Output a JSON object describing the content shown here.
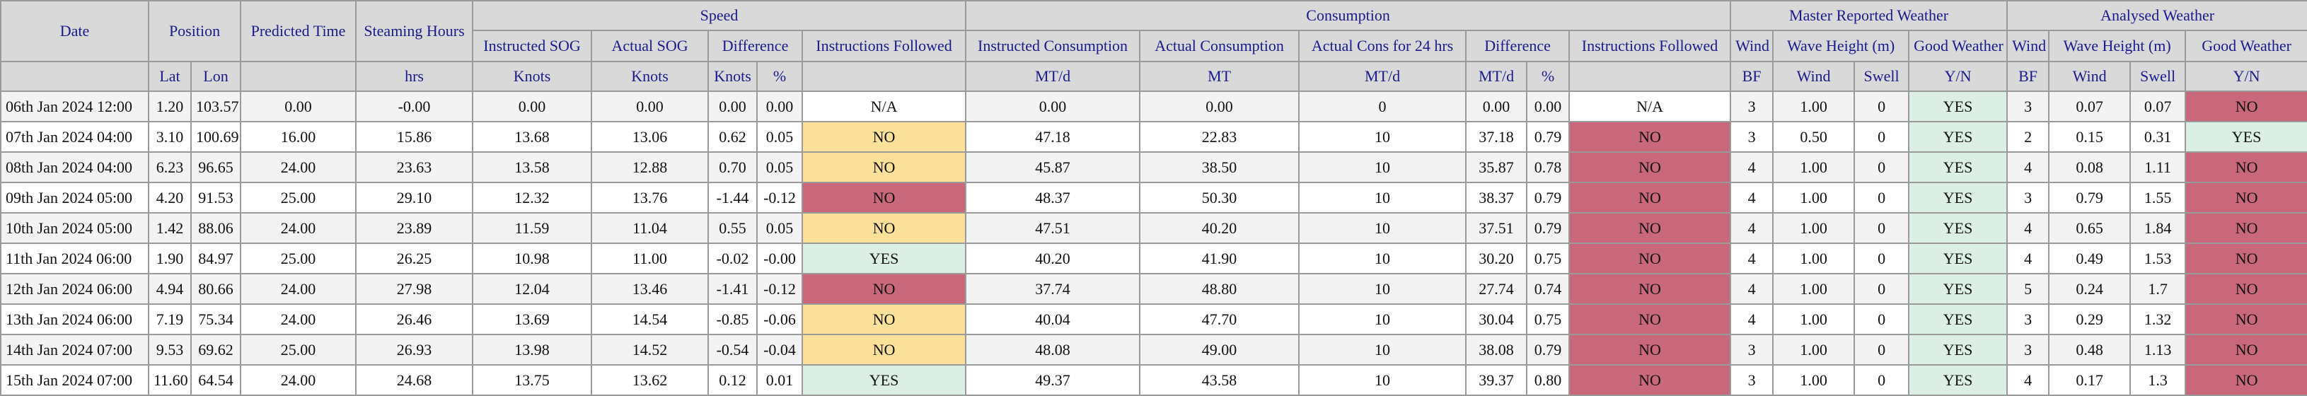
{
  "colors": {
    "header_bg": "#d9d9d9",
    "header_text": "#1a1a8c",
    "no_orange": "#fbe09a",
    "no_red": "#c9677b",
    "yes_green": "#dcefe4"
  },
  "headers": {
    "groups": [
      "Date",
      "Position",
      "Predicted Time",
      "Steaming Hours",
      "Speed",
      "Consumption",
      "Master Reported Weather",
      "Analysed Weather"
    ],
    "sub": [
      "Instructed SOG",
      "Actual SOG",
      "Difference",
      "Instructions Followed",
      "Instructed Consumption",
      "Actual Consumption",
      "Actual Cons for 24 hrs",
      "Difference",
      "Instructions Followed",
      "Wind",
      "Wave Height (m)",
      "Good Weather",
      "Wind",
      "Wave Height (m)",
      "Good Weather"
    ],
    "units": [
      "Lat",
      "Lon",
      "hrs",
      "Knots",
      "Knots",
      "Knots",
      "%",
      "MT/d",
      "MT",
      "MT/d",
      "MT/d",
      "%",
      "BF",
      "Wind",
      "Swell",
      "Y/N",
      "BF",
      "Wind",
      "Swell",
      "Y/N"
    ]
  },
  "rows": [
    [
      "06th Jan 2024 12:00",
      "1.20",
      "103.57",
      "0.00",
      "-0.00",
      "0.00",
      "0.00",
      "0.00",
      "0.00",
      "N/A",
      "0.00",
      "0.00",
      "0",
      "0.00",
      "0.00",
      "N/A",
      "3",
      "1.00",
      "0",
      "YES",
      "3",
      "0.07",
      "0.07",
      "NO"
    ],
    [
      "07th Jan 2024 04:00",
      "3.10",
      "100.69",
      "16.00",
      "15.86",
      "13.68",
      "13.06",
      "0.62",
      "0.05",
      "NO",
      "47.18",
      "22.83",
      "10",
      "37.18",
      "0.79",
      "NO",
      "3",
      "0.50",
      "0",
      "YES",
      "2",
      "0.15",
      "0.31",
      "YES"
    ],
    [
      "08th Jan 2024 04:00",
      "6.23",
      "96.65",
      "24.00",
      "23.63",
      "13.58",
      "12.88",
      "0.70",
      "0.05",
      "NO",
      "45.87",
      "38.50",
      "10",
      "35.87",
      "0.78",
      "NO",
      "4",
      "1.00",
      "0",
      "YES",
      "4",
      "0.08",
      "1.11",
      "NO"
    ],
    [
      "09th Jan 2024 05:00",
      "4.20",
      "91.53",
      "25.00",
      "29.10",
      "12.32",
      "13.76",
      "-1.44",
      "-0.12",
      "NO",
      "48.37",
      "50.30",
      "10",
      "38.37",
      "0.79",
      "NO",
      "4",
      "1.00",
      "0",
      "YES",
      "3",
      "0.79",
      "1.55",
      "NO"
    ],
    [
      "10th Jan 2024 05:00",
      "1.42",
      "88.06",
      "24.00",
      "23.89",
      "11.59",
      "11.04",
      "0.55",
      "0.05",
      "NO",
      "47.51",
      "40.20",
      "10",
      "37.51",
      "0.79",
      "NO",
      "4",
      "1.00",
      "0",
      "YES",
      "4",
      "0.65",
      "1.84",
      "NO"
    ],
    [
      "11th Jan 2024 06:00",
      "1.90",
      "84.97",
      "25.00",
      "26.25",
      "10.98",
      "11.00",
      "-0.02",
      "-0.00",
      "YES",
      "40.20",
      "41.90",
      "10",
      "30.20",
      "0.75",
      "NO",
      "4",
      "1.00",
      "0",
      "YES",
      "4",
      "0.49",
      "1.53",
      "NO"
    ],
    [
      "12th Jan 2024 06:00",
      "4.94",
      "80.66",
      "24.00",
      "27.98",
      "12.04",
      "13.46",
      "-1.41",
      "-0.12",
      "NO",
      "37.74",
      "48.80",
      "10",
      "27.74",
      "0.74",
      "NO",
      "4",
      "1.00",
      "0",
      "YES",
      "5",
      "0.24",
      "1.7",
      "NO"
    ],
    [
      "13th Jan 2024 06:00",
      "7.19",
      "75.34",
      "24.00",
      "26.46",
      "13.69",
      "14.54",
      "-0.85",
      "-0.06",
      "NO",
      "40.04",
      "47.70",
      "10",
      "30.04",
      "0.75",
      "NO",
      "4",
      "1.00",
      "0",
      "YES",
      "3",
      "0.29",
      "1.32",
      "NO"
    ],
    [
      "14th Jan 2024 07:00",
      "9.53",
      "69.62",
      "25.00",
      "26.93",
      "13.98",
      "14.52",
      "-0.54",
      "-0.04",
      "NO",
      "48.08",
      "49.00",
      "10",
      "38.08",
      "0.79",
      "NO",
      "3",
      "1.00",
      "0",
      "YES",
      "3",
      "0.48",
      "1.13",
      "NO"
    ],
    [
      "15th Jan 2024 07:00",
      "11.60",
      "64.54",
      "24.00",
      "24.68",
      "13.75",
      "13.62",
      "0.12",
      "0.01",
      "YES",
      "49.37",
      "43.58",
      "10",
      "39.37",
      "0.80",
      "NO",
      "3",
      "1.00",
      "0",
      "YES",
      "4",
      "0.17",
      "1.3",
      "NO"
    ]
  ],
  "cell_status": [
    [
      "",
      "",
      "",
      "",
      "",
      "",
      "",
      "",
      "",
      "na",
      "",
      "",
      "",
      "",
      "",
      "na",
      "",
      "",
      "",
      "yes-green",
      "",
      "",
      "",
      "no-red"
    ],
    [
      "",
      "",
      "",
      "",
      "",
      "",
      "",
      "",
      "",
      "no-orange",
      "",
      "",
      "",
      "",
      "",
      "no-red",
      "",
      "",
      "",
      "yes-green",
      "",
      "",
      "",
      "yes-green"
    ],
    [
      "",
      "",
      "",
      "",
      "",
      "",
      "",
      "",
      "",
      "no-orange",
      "",
      "",
      "",
      "",
      "",
      "no-red",
      "",
      "",
      "",
      "yes-green",
      "",
      "",
      "",
      "no-red"
    ],
    [
      "",
      "",
      "",
      "",
      "",
      "",
      "",
      "",
      "",
      "no-red",
      "",
      "",
      "",
      "",
      "",
      "no-red",
      "",
      "",
      "",
      "yes-green",
      "",
      "",
      "",
      "no-red"
    ],
    [
      "",
      "",
      "",
      "",
      "",
      "",
      "",
      "",
      "",
      "no-orange",
      "",
      "",
      "",
      "",
      "",
      "no-red",
      "",
      "",
      "",
      "yes-green",
      "",
      "",
      "",
      "no-red"
    ],
    [
      "",
      "",
      "",
      "",
      "",
      "",
      "",
      "",
      "",
      "yes-green",
      "",
      "",
      "",
      "",
      "",
      "no-red",
      "",
      "",
      "",
      "yes-green",
      "",
      "",
      "",
      "no-red"
    ],
    [
      "",
      "",
      "",
      "",
      "",
      "",
      "",
      "",
      "",
      "no-red",
      "",
      "",
      "",
      "",
      "",
      "no-red",
      "",
      "",
      "",
      "yes-green",
      "",
      "",
      "",
      "no-red"
    ],
    [
      "",
      "",
      "",
      "",
      "",
      "",
      "",
      "",
      "",
      "no-orange",
      "",
      "",
      "",
      "",
      "",
      "no-red",
      "",
      "",
      "",
      "yes-green",
      "",
      "",
      "",
      "no-red"
    ],
    [
      "",
      "",
      "",
      "",
      "",
      "",
      "",
      "",
      "",
      "no-orange",
      "",
      "",
      "",
      "",
      "",
      "no-red",
      "",
      "",
      "",
      "yes-green",
      "",
      "",
      "",
      "no-red"
    ],
    [
      "",
      "",
      "",
      "",
      "",
      "",
      "",
      "",
      "",
      "yes-green",
      "",
      "",
      "",
      "",
      "",
      "no-red",
      "",
      "",
      "",
      "yes-green",
      "",
      "",
      "",
      "no-red"
    ]
  ]
}
